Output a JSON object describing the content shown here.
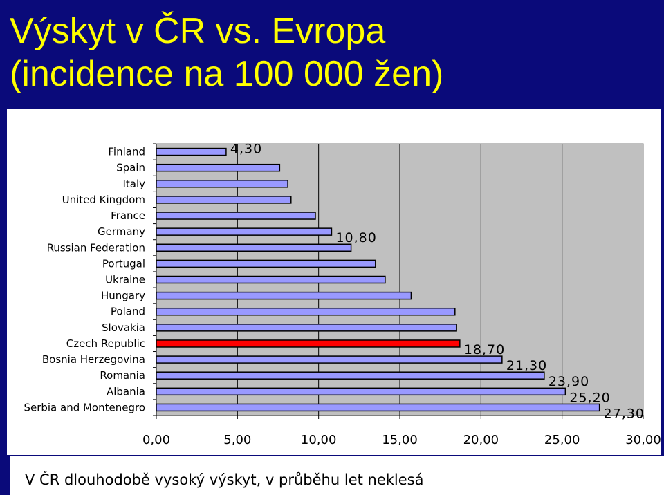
{
  "title_line1": "Výskyt v ČR vs. Evropa",
  "title_line2": "(incidence na 100 000 žen)",
  "footer_text": "V ČR dlouhodobě vysoký výskyt, v průběhu let neklesá",
  "chart_data": {
    "type": "bar",
    "orientation": "horizontal",
    "categories": [
      "Finland",
      "Spain",
      "Italy",
      "United Kingdom",
      "France",
      "Germany",
      "Russian Federation",
      "Portugal",
      "Ukraine",
      "Hungary",
      "Poland",
      "Slovakia",
      "Czech Republic",
      "Bosnia Herzegovina",
      "Romania",
      "Albania",
      "Serbia and Montenegro"
    ],
    "values": [
      4.3,
      7.6,
      8.1,
      8.3,
      9.8,
      10.8,
      12.0,
      13.5,
      14.1,
      15.7,
      18.4,
      18.5,
      18.7,
      21.3,
      23.9,
      25.2,
      27.3
    ],
    "data_labels": {
      "Finland": "4,30",
      "Germany": "10,80",
      "Czech Republic": "18,70",
      "Bosnia Herzegovina": "21,30",
      "Romania": "23,90",
      "Albania": "25,20",
      "Serbia and Montenegro": "27,30"
    },
    "highlight": "Czech Republic",
    "xlim": [
      0,
      30
    ],
    "ticks": [
      "0,00",
      "5,00",
      "10,00",
      "15,00",
      "20,00",
      "25,00",
      "30,00"
    ],
    "colors": {
      "bar": "#9999ff",
      "highlight": "#ff0000",
      "plot_bg": "#c0c0c0",
      "title": "#ffff00",
      "background": "#0a0a7a"
    },
    "grid": true
  }
}
